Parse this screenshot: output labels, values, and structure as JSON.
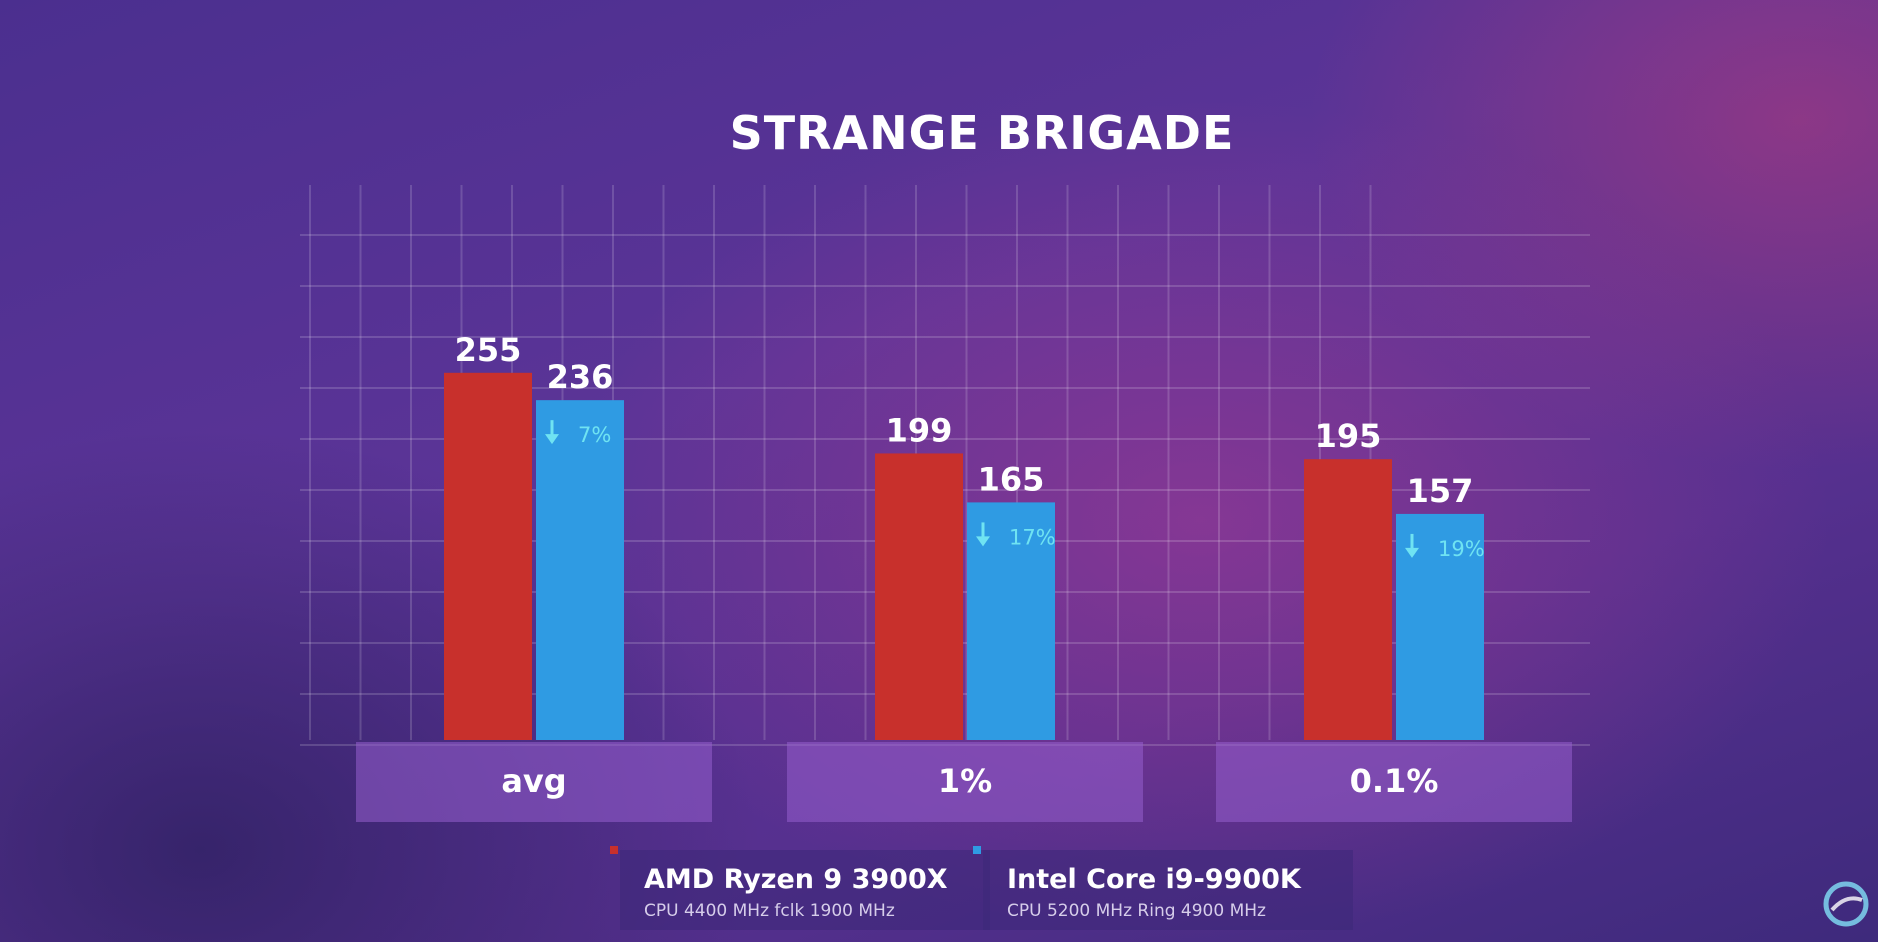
{
  "chart_data": {
    "type": "bar",
    "title": "STRANGE BRIGADE",
    "categories": [
      "avg",
      "1%",
      "0.1%"
    ],
    "ylim": [
      0,
      300
    ],
    "grid": true,
    "legend_position": "bottom",
    "series": [
      {
        "name": "AMD Ryzen 9 3900X",
        "subtitle": "CPU 4400 MHz fclk 1900 MHz",
        "color": "#c8302c",
        "values": [
          255,
          199,
          195
        ]
      },
      {
        "name": "Intel Core i9-9900K",
        "subtitle": "CPU 5200 MHz Ring 4900 MHz",
        "color": "#2f9be3",
        "values": [
          236,
          165,
          157
        ],
        "annotations": [
          "7%",
          "17%",
          "19%"
        ]
      }
    ],
    "annotation_color": "#6fe3f2",
    "annotation_icon": "down-arrow-icon"
  }
}
